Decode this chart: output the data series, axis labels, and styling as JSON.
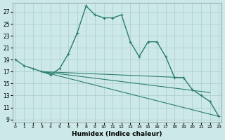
{
  "xlabel": "Humidex (Indice chaleur)",
  "bg_color": "#cce8e8",
  "grid_color": "#aacccc",
  "line_color": "#2a7d6e",
  "x_ticks": [
    0,
    1,
    2,
    3,
    4,
    5,
    6,
    7,
    8,
    9,
    10,
    11,
    12,
    13,
    14,
    15,
    16,
    17,
    18,
    19,
    20,
    21,
    22,
    23
  ],
  "y_ticks": [
    9,
    11,
    13,
    15,
    17,
    19,
    21,
    23,
    25,
    27
  ],
  "ylim": [
    8.5,
    28.5
  ],
  "xlim": [
    -0.3,
    23.3
  ],
  "lines": [
    {
      "x": [
        0,
        1,
        2,
        3,
        4,
        5,
        6,
        7,
        8,
        9,
        10,
        11,
        12,
        13,
        14,
        15,
        16,
        17,
        18,
        19,
        20,
        21,
        22,
        23
      ],
      "y": [
        19,
        18,
        17.5,
        17,
        16.5,
        17.5,
        20,
        23.5,
        28,
        26.5,
        26,
        26,
        26.5,
        22,
        19.5,
        22,
        22,
        19.5,
        16,
        16,
        14,
        13,
        12,
        9.5
      ],
      "marker": true,
      "lw": 1.0
    },
    {
      "x": [
        3,
        19
      ],
      "y": [
        17,
        16
      ],
      "marker": false,
      "lw": 0.8
    },
    {
      "x": [
        3,
        22
      ],
      "y": [
        17,
        13.5
      ],
      "marker": false,
      "lw": 0.8
    },
    {
      "x": [
        3,
        23
      ],
      "y": [
        17,
        9.5
      ],
      "marker": false,
      "lw": 0.8
    },
    {
      "x": [
        0,
        1,
        2,
        3
      ],
      "y": [
        19,
        18,
        17.5,
        17
      ],
      "marker": true,
      "lw": 0.8
    }
  ]
}
